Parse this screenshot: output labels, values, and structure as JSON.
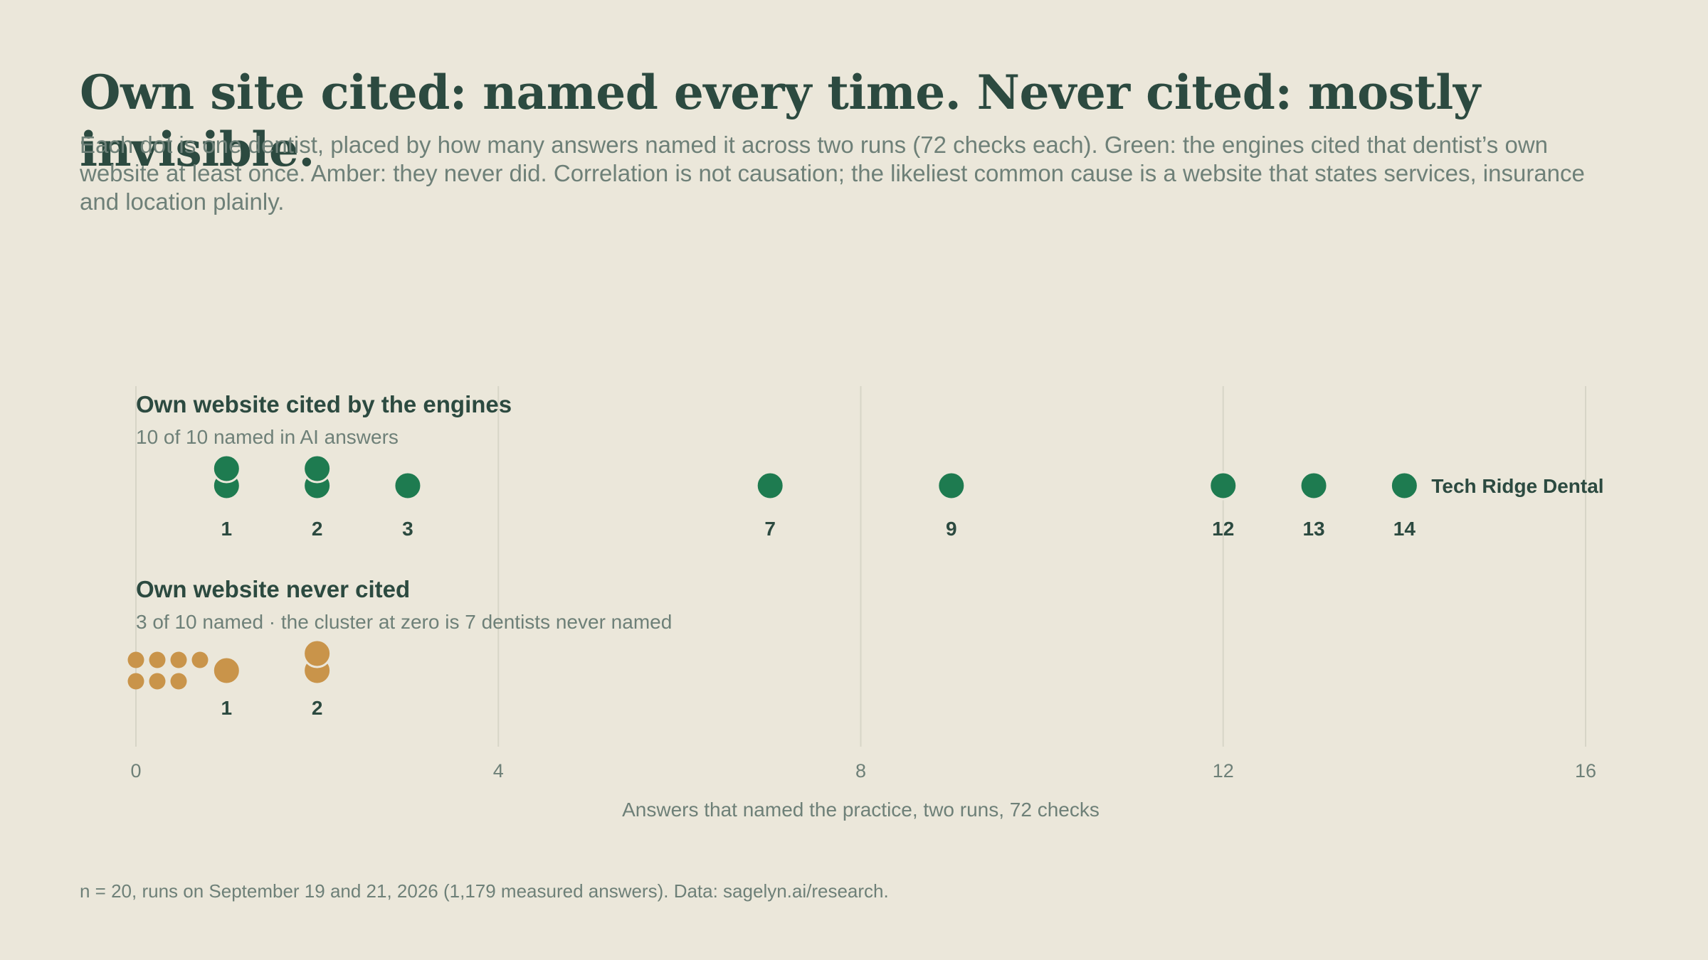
{
  "page": {
    "title": "Own site cited: named every time. Never cited: mostly invisible.",
    "subtitle": "Each dot is one dentist, placed by how many answers named it across two runs (72 checks each). Green: the engines cited that dentist’s own website at least once. Amber: they never did. Correlation is not causation; the likeliest common cause is a website that states services, insurance and location plainly.",
    "footer": "n = 20, runs on September 19 and 21, 2026 (1,179 measured answers). Data: sagelyn.ai/research."
  },
  "chart_data": {
    "type": "scatter",
    "x_axis": {
      "label": "Answers that named the practice, two runs, 72 checks",
      "range": [
        0,
        16
      ],
      "ticks": [
        0,
        4,
        8,
        12,
        16
      ],
      "gridlines": true
    },
    "colors": {
      "cited": "#1e7b50",
      "never_cited": "#c9944a",
      "grid": "#d7d5c7"
    },
    "series": [
      {
        "name": "Own website cited by the engines",
        "subtitle": "10 of 10 named in AI answers",
        "color": "#1e7b50",
        "points": [
          {
            "x": 1,
            "count": 2,
            "label": "1"
          },
          {
            "x": 2,
            "count": 2,
            "label": "2"
          },
          {
            "x": 3,
            "count": 1,
            "label": "3"
          },
          {
            "x": 7,
            "count": 1,
            "label": "7"
          },
          {
            "x": 9,
            "count": 1,
            "label": "9"
          },
          {
            "x": 12,
            "count": 1,
            "label": "12"
          },
          {
            "x": 13,
            "count": 1,
            "label": "13"
          },
          {
            "x": 14,
            "count": 1,
            "label": "14"
          }
        ],
        "annotation": {
          "x": 14,
          "text": "Tech Ridge Dental"
        }
      },
      {
        "name": "Own website never cited",
        "subtitle": "3 of 10 named · the cluster at zero is 7 dentists never named",
        "color": "#c9944a",
        "zero_cluster": 7,
        "points": [
          {
            "x": 1,
            "count": 1,
            "label": "1"
          },
          {
            "x": 2,
            "count": 2,
            "label": "2"
          }
        ]
      }
    ]
  }
}
